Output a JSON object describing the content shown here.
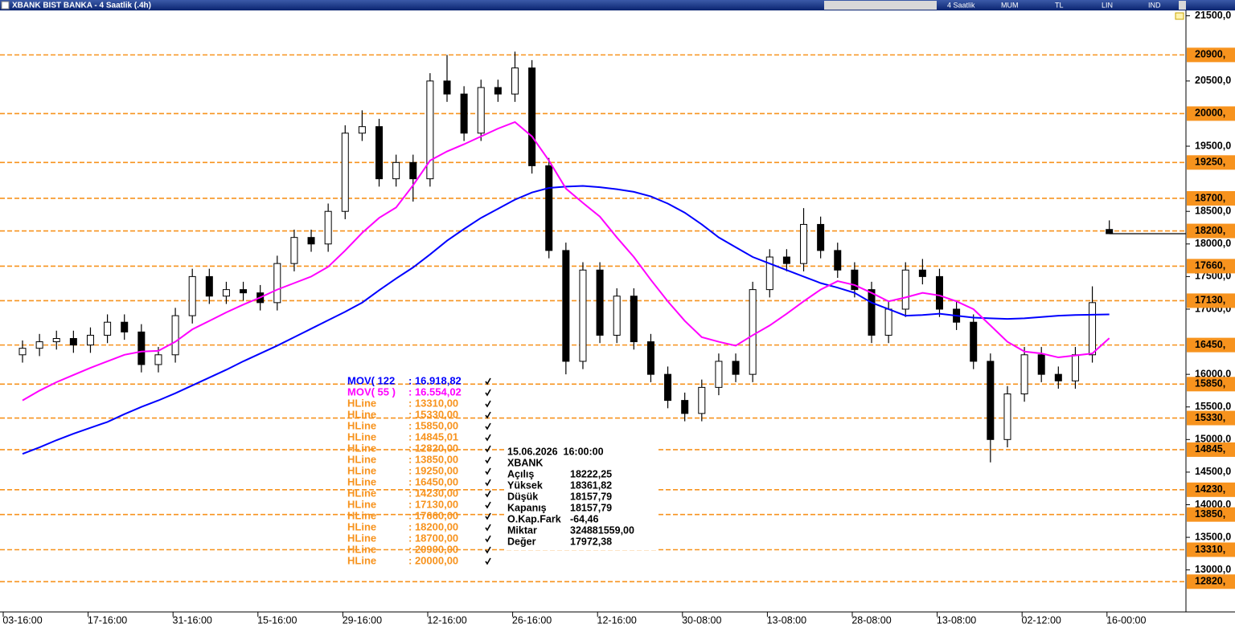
{
  "chart_data": {
    "type": "candlestick",
    "title": "XBANK BIST BANKA - 4 Saatlik (.4h)",
    "toolbar": [
      "4 Saatlik",
      "MUM",
      "TL",
      "LIN",
      "IND"
    ],
    "categories": [
      "03-16:00",
      null,
      null,
      null,
      null,
      "17-16:00",
      null,
      null,
      null,
      null,
      "31-16:00",
      null,
      null,
      null,
      null,
      "15-16:00",
      null,
      null,
      null,
      null,
      "29-16:00",
      null,
      null,
      null,
      null,
      "12-16:00",
      null,
      null,
      null,
      null,
      "26-16:00",
      null,
      null,
      null,
      null,
      "12-16:00",
      null,
      null,
      null,
      null,
      "30-08:00",
      null,
      null,
      null,
      null,
      "13-08:00",
      null,
      null,
      null,
      null,
      "28-08:00",
      null,
      null,
      null,
      null,
      "13-08:00",
      null,
      null,
      null,
      null,
      "02-12:00",
      null,
      null,
      null,
      null,
      "16-00:00"
    ],
    "open": [
      16300,
      16400,
      16500,
      16550,
      16450,
      16600,
      16800,
      16650,
      16150,
      16300,
      16900,
      17500,
      17200,
      17300,
      17250,
      17100,
      17700,
      18100,
      18000,
      18500,
      19700,
      19800,
      19000,
      19250,
      19000,
      20500,
      20300,
      19700,
      20400,
      20300,
      20700,
      19200,
      17900,
      16200,
      17600,
      16600,
      17200,
      16500,
      16000,
      15600,
      15400,
      15800,
      16200,
      16000,
      17300,
      17800,
      17700,
      18300,
      17900,
      17600,
      17300,
      16600,
      17000,
      17600,
      17500,
      17000,
      16800,
      16200,
      15000,
      15700,
      16300,
      16000,
      15900,
      16300,
      18222.25,
      null
    ],
    "high": [
      16520,
      16620,
      16670,
      16670,
      16720,
      16920,
      16920,
      16770,
      16420,
      17020,
      17620,
      17620,
      17420,
      17420,
      17370,
      17820,
      18220,
      18220,
      18620,
      19820,
      20050,
      19920,
      19370,
      19370,
      20620,
      20900,
      20420,
      20520,
      20520,
      20950,
      20820,
      19320,
      18020,
      17720,
      17720,
      17320,
      17320,
      16620,
      16120,
      15720,
      15920,
      16320,
      16320,
      17420,
      17920,
      17920,
      18550,
      18420,
      18020,
      17720,
      17420,
      17120,
      17720,
      17770,
      17620,
      17120,
      16920,
      16320,
      15820,
      16420,
      16420,
      16120,
      16420,
      17350,
      18361.82,
      null
    ],
    "low": [
      16180,
      16280,
      16380,
      16330,
      16330,
      16480,
      16530,
      16030,
      16030,
      16180,
      16780,
      17080,
      17080,
      17130,
      16980,
      16980,
      17580,
      17880,
      17880,
      18380,
      19580,
      18880,
      18880,
      18650,
      18880,
      20180,
      19580,
      19580,
      20180,
      20180,
      19080,
      17780,
      16000,
      16080,
      16480,
      16480,
      16380,
      15880,
      15480,
      15280,
      15280,
      15680,
      15880,
      15880,
      17180,
      17580,
      17580,
      17780,
      17480,
      17180,
      16480,
      16480,
      16880,
      17380,
      16880,
      16680,
      16080,
      14650,
      14880,
      15580,
      15880,
      15780,
      15780,
      16180,
      18157.79,
      null
    ],
    "close": [
      16400,
      16500,
      16550,
      16450,
      16600,
      16800,
      16650,
      16150,
      16300,
      16900,
      17500,
      17200,
      17300,
      17250,
      17100,
      17700,
      18100,
      18000,
      18500,
      19700,
      19800,
      19000,
      19250,
      19000,
      20500,
      20300,
      19700,
      20400,
      20300,
      20700,
      19200,
      17900,
      16200,
      17600,
      16600,
      17200,
      16500,
      16000,
      15600,
      15400,
      15800,
      16200,
      16000,
      17300,
      17800,
      17700,
      18300,
      17900,
      17600,
      17300,
      16600,
      17000,
      17600,
      17500,
      17000,
      16800,
      16200,
      15000,
      15700,
      16300,
      16000,
      15900,
      16300,
      17100,
      18157.79,
      null
    ],
    "ylim": [
      12380,
      21570
    ],
    "yticks": [
      {
        "value": 21500,
        "label": "21500,0"
      },
      {
        "value": 20500,
        "label": "20500,0"
      },
      {
        "value": 19500,
        "label": "19500,0"
      },
      {
        "value": 18500,
        "label": "18500,0"
      },
      {
        "value": 18000,
        "label": "18000,0"
      },
      {
        "value": 17500,
        "label": "17500,0"
      },
      {
        "value": 17000,
        "label": "17000,0"
      },
      {
        "value": 16000,
        "label": "16000,0"
      },
      {
        "value": 15500,
        "label": "15500,0"
      },
      {
        "value": 15000,
        "label": "15000,0"
      },
      {
        "value": 14500,
        "label": "14500,0"
      },
      {
        "value": 14000,
        "label": "14000,0"
      },
      {
        "value": 13500,
        "label": "13500,0"
      },
      {
        "value": 13000,
        "label": "13000,0"
      }
    ],
    "series": [
      {
        "name": "MOV( 122",
        "last_label": ": 16.918,82",
        "color": "#0000ff",
        "values": [
          14780,
          14880,
          14990,
          15090,
          15180,
          15270,
          15390,
          15500,
          15600,
          15710,
          15830,
          15950,
          16070,
          16200,
          16320,
          16440,
          16570,
          16700,
          16830,
          16960,
          17100,
          17290,
          17470,
          17640,
          17840,
          18050,
          18230,
          18400,
          18540,
          18680,
          18790,
          18860,
          18880,
          18890,
          18870,
          18840,
          18800,
          18730,
          18620,
          18480,
          18300,
          18100,
          17950,
          17800,
          17700,
          17600,
          17500,
          17400,
          17330,
          17250,
          17100,
          17000,
          16900,
          16910,
          16930,
          16900,
          16870,
          16860,
          16850,
          16860,
          16880,
          16900,
          16910,
          16915,
          16918.82,
          null
        ]
      },
      {
        "name": "MOV( 55 )",
        "last_label": ": 16.554,02",
        "color": "#ff00ff",
        "values": [
          15600,
          15750,
          15880,
          15990,
          16100,
          16200,
          16300,
          16350,
          16360,
          16500,
          16690,
          16820,
          16950,
          17070,
          17180,
          17300,
          17400,
          17500,
          17650,
          17900,
          18170,
          18400,
          18560,
          18900,
          19280,
          19420,
          19530,
          19650,
          19770,
          19870,
          19650,
          19280,
          18850,
          18630,
          18420,
          18100,
          17800,
          17450,
          17120,
          16820,
          16570,
          16500,
          16440,
          16600,
          16750,
          16930,
          17120,
          17300,
          17430,
          17370,
          17250,
          17120,
          17180,
          17250,
          17210,
          17120,
          17000,
          16750,
          16500,
          16350,
          16320,
          16260,
          16290,
          16320,
          16554.02,
          null
        ]
      }
    ],
    "hline_color": "#f7931e",
    "hlines": [
      {
        "name": "HLine",
        "value": 13310,
        "label": ": 13310,00",
        "axis_label": "13310,"
      },
      {
        "name": "HLine",
        "value": 15330,
        "label": ": 15330,00",
        "axis_label": "15330,"
      },
      {
        "name": "HLine",
        "value": 15850,
        "label": ": 15850,00",
        "axis_label": "15850,"
      },
      {
        "name": "HLine",
        "value": 14845.01,
        "label": ": 14845,01",
        "axis_label": "14845,"
      },
      {
        "name": "HLine",
        "value": 12820,
        "label": ": 12820,00",
        "axis_label": "12820,"
      },
      {
        "name": "HLine",
        "value": 13850,
        "label": ": 13850,00",
        "axis_label": "13850,"
      },
      {
        "name": "HLine",
        "value": 19250,
        "label": ": 19250,00",
        "axis_label": "19250,"
      },
      {
        "name": "HLine",
        "value": 16450,
        "label": ": 16450,00",
        "axis_label": "16450,"
      },
      {
        "name": "HLine",
        "value": 14230,
        "label": ": 14230,00",
        "axis_label": "14230,"
      },
      {
        "name": "HLine",
        "value": 17130,
        "label": ": 17130,00",
        "axis_label": "17130,"
      },
      {
        "name": "HLine",
        "value": 17660,
        "label": ": 17660,00",
        "axis_label": "17660,"
      },
      {
        "name": "HLine",
        "value": 18200,
        "label": ": 18200,00",
        "axis_label": "18200,"
      },
      {
        "name": "HLine",
        "value": 18700,
        "label": ": 18700,00",
        "axis_label": "18700,"
      },
      {
        "name": "HLine",
        "value": 20900,
        "label": ": 20900,00",
        "axis_label": "20900,"
      },
      {
        "name": "HLine",
        "value": 20000,
        "label": ": 20000,00",
        "axis_label": "20000,"
      }
    ],
    "info": {
      "datetime": "15.06.2026  16:00:00",
      "symbol": "XBANK",
      "rows": [
        {
          "label": "Açılış",
          "value": 18222.25,
          "value_label": "18222,25"
        },
        {
          "label": "Yüksek",
          "value": 18361.82,
          "value_label": "18361,82"
        },
        {
          "label": "Düşük",
          "value": 18157.79,
          "value_label": "18157,79"
        },
        {
          "label": "Kapanış",
          "value": 18157.79,
          "value_label": "18157,79"
        },
        {
          "label": "O.Kap.Fark",
          "value": -64.46,
          "value_label": "-64,46"
        },
        {
          "label": "Miktar",
          "value": 324881559,
          "value_label": "324881559,00"
        },
        {
          "label": "Değer",
          "value": 17972.38,
          "value_label": "17972,38"
        }
      ]
    }
  }
}
